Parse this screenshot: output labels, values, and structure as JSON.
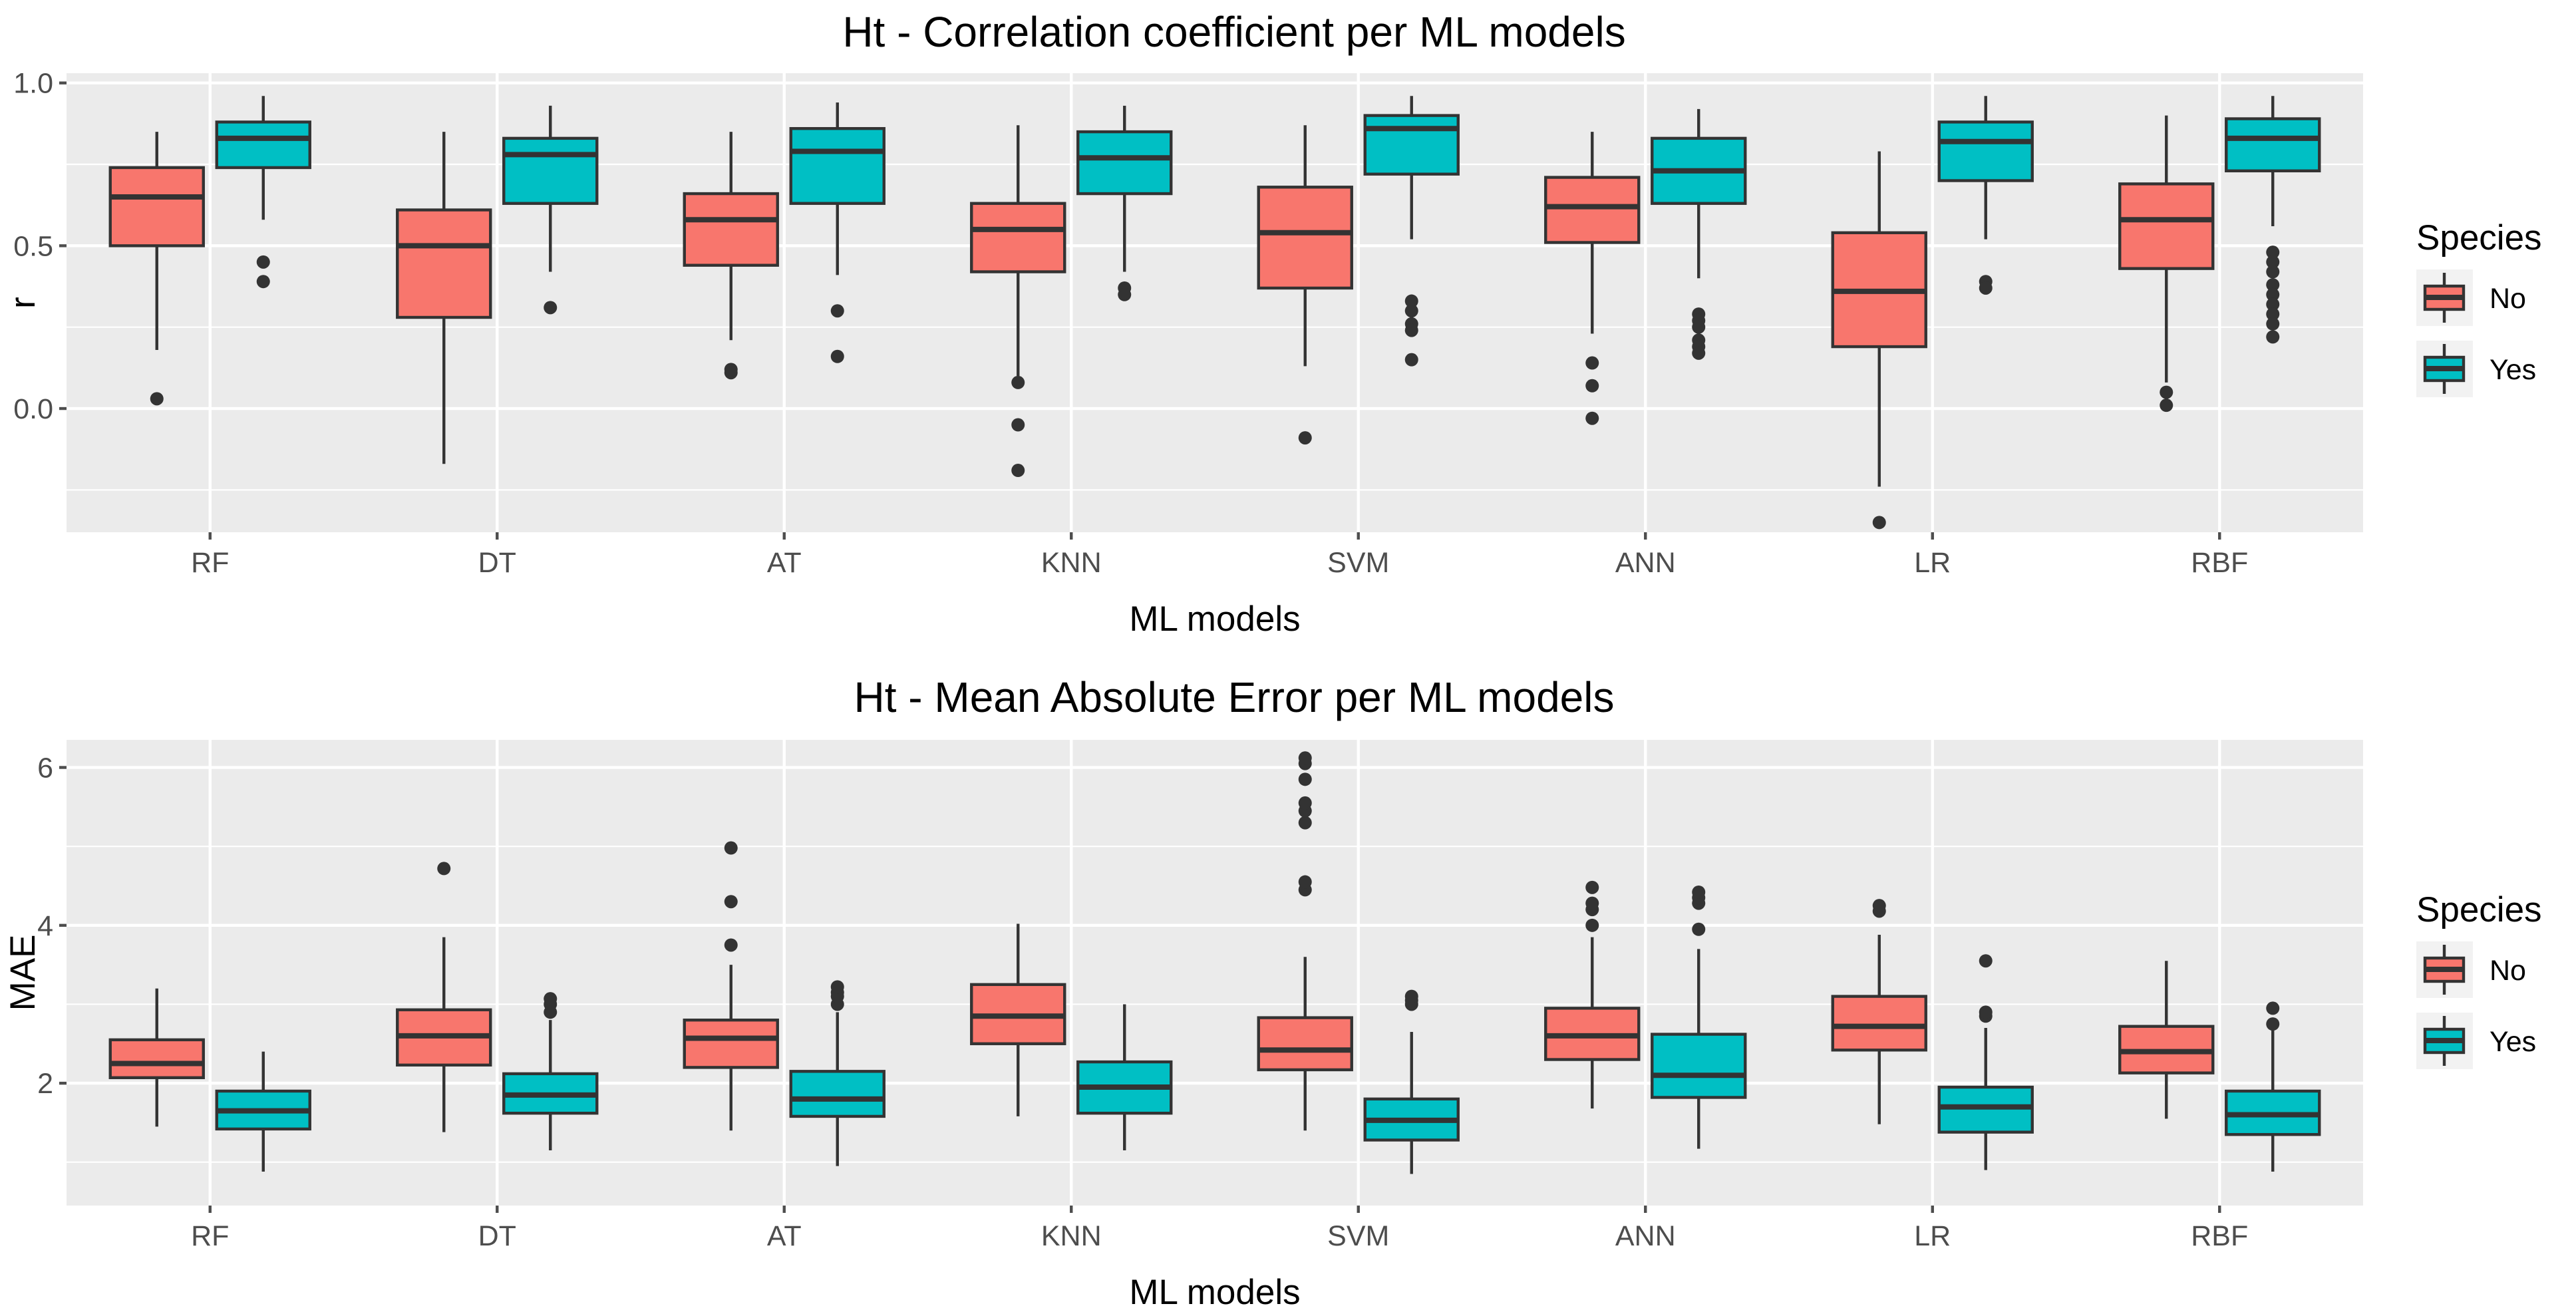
{
  "chart_data": [
    {
      "type": "boxplot",
      "title": "Ht - Correlation coefficient per ML models",
      "xlabel": "ML models",
      "ylabel": "r",
      "ylim": [
        -0.38,
        1.03
      ],
      "yticks": [
        0.0,
        0.5,
        1.0
      ],
      "ytick_labels": [
        "0.0",
        "0.5",
        "1.0"
      ],
      "grid": true,
      "categories": [
        "RF",
        "DT",
        "AT",
        "KNN",
        "SVM",
        "ANN",
        "LR",
        "RBF"
      ],
      "legend": {
        "title": "Species",
        "position": "right",
        "entries": [
          "No",
          "Yes"
        ]
      },
      "series": [
        {
          "name": "No",
          "color": "#F8766D",
          "boxes": [
            {
              "lower": 0.18,
              "q1": 0.5,
              "median": 0.65,
              "q3": 0.74,
              "upper": 0.85,
              "outliers": [
                0.03
              ]
            },
            {
              "lower": -0.17,
              "q1": 0.28,
              "median": 0.5,
              "q3": 0.61,
              "upper": 0.85,
              "outliers": []
            },
            {
              "lower": 0.21,
              "q1": 0.44,
              "median": 0.58,
              "q3": 0.66,
              "upper": 0.85,
              "outliers": [
                0.11,
                0.12
              ]
            },
            {
              "lower": 0.1,
              "q1": 0.42,
              "median": 0.55,
              "q3": 0.63,
              "upper": 0.87,
              "outliers": [
                0.08,
                -0.05,
                -0.19
              ]
            },
            {
              "lower": 0.13,
              "q1": 0.37,
              "median": 0.54,
              "q3": 0.68,
              "upper": 0.87,
              "outliers": [
                -0.09
              ]
            },
            {
              "lower": 0.23,
              "q1": 0.51,
              "median": 0.62,
              "q3": 0.71,
              "upper": 0.85,
              "outliers": [
                0.14,
                0.07,
                -0.03
              ]
            },
            {
              "lower": -0.24,
              "q1": 0.19,
              "median": 0.36,
              "q3": 0.54,
              "upper": 0.79,
              "outliers": [
                -0.35
              ]
            },
            {
              "lower": 0.08,
              "q1": 0.43,
              "median": 0.58,
              "q3": 0.69,
              "upper": 0.9,
              "outliers": [
                0.05,
                0.01
              ]
            }
          ]
        },
        {
          "name": "Yes",
          "color": "#00BFC4",
          "boxes": [
            {
              "lower": 0.58,
              "q1": 0.74,
              "median": 0.83,
              "q3": 0.88,
              "upper": 0.96,
              "outliers": [
                0.45,
                0.39
              ]
            },
            {
              "lower": 0.42,
              "q1": 0.63,
              "median": 0.78,
              "q3": 0.83,
              "upper": 0.93,
              "outliers": [
                0.31
              ]
            },
            {
              "lower": 0.41,
              "q1": 0.63,
              "median": 0.79,
              "q3": 0.86,
              "upper": 0.94,
              "outliers": [
                0.3,
                0.16
              ]
            },
            {
              "lower": 0.42,
              "q1": 0.66,
              "median": 0.77,
              "q3": 0.85,
              "upper": 0.93,
              "outliers": [
                0.37,
                0.35
              ]
            },
            {
              "lower": 0.52,
              "q1": 0.72,
              "median": 0.86,
              "q3": 0.9,
              "upper": 0.96,
              "outliers": [
                0.33,
                0.3,
                0.26,
                0.24,
                0.15
              ]
            },
            {
              "lower": 0.4,
              "q1": 0.63,
              "median": 0.73,
              "q3": 0.83,
              "upper": 0.92,
              "outliers": [
                0.29,
                0.27,
                0.25,
                0.21,
                0.19,
                0.17
              ]
            },
            {
              "lower": 0.52,
              "q1": 0.7,
              "median": 0.82,
              "q3": 0.88,
              "upper": 0.96,
              "outliers": [
                0.39,
                0.37
              ]
            },
            {
              "lower": 0.56,
              "q1": 0.73,
              "median": 0.83,
              "q3": 0.89,
              "upper": 0.96,
              "outliers": [
                0.48,
                0.45,
                0.42,
                0.38,
                0.35,
                0.32,
                0.29,
                0.26,
                0.22
              ]
            }
          ]
        }
      ]
    },
    {
      "type": "boxplot",
      "title": "Ht - Mean Absolute Error per ML models",
      "xlabel": "ML models",
      "ylabel": "MAE",
      "ylim": [
        0.45,
        6.35
      ],
      "yticks": [
        2,
        4,
        6
      ],
      "ytick_labels": [
        "2",
        "4",
        "6"
      ],
      "grid": true,
      "categories": [
        "RF",
        "DT",
        "AT",
        "KNN",
        "SVM",
        "ANN",
        "LR",
        "RBF"
      ],
      "legend": {
        "title": "Species",
        "position": "right",
        "entries": [
          "No",
          "Yes"
        ]
      },
      "series": [
        {
          "name": "No",
          "color": "#F8766D",
          "boxes": [
            {
              "lower": 1.45,
              "q1": 2.07,
              "median": 2.25,
              "q3": 2.55,
              "upper": 3.2,
              "outliers": []
            },
            {
              "lower": 1.38,
              "q1": 2.23,
              "median": 2.6,
              "q3": 2.93,
              "upper": 3.85,
              "outliers": [
                4.72
              ]
            },
            {
              "lower": 1.4,
              "q1": 2.2,
              "median": 2.57,
              "q3": 2.8,
              "upper": 3.5,
              "outliers": [
                3.75,
                4.3,
                4.98
              ]
            },
            {
              "lower": 1.58,
              "q1": 2.5,
              "median": 2.85,
              "q3": 3.25,
              "upper": 4.02,
              "outliers": []
            },
            {
              "lower": 1.4,
              "q1": 2.17,
              "median": 2.42,
              "q3": 2.83,
              "upper": 3.6,
              "outliers": [
                4.45,
                4.55,
                5.3,
                5.45,
                5.55,
                5.85,
                6.05,
                6.12
              ]
            },
            {
              "lower": 1.68,
              "q1": 2.3,
              "median": 2.6,
              "q3": 2.95,
              "upper": 3.85,
              "outliers": [
                4.0,
                4.2,
                4.28,
                4.48
              ]
            },
            {
              "lower": 1.48,
              "q1": 2.42,
              "median": 2.72,
              "q3": 3.1,
              "upper": 3.88,
              "outliers": [
                4.18,
                4.25
              ]
            },
            {
              "lower": 1.55,
              "q1": 2.13,
              "median": 2.4,
              "q3": 2.72,
              "upper": 3.55,
              "outliers": []
            }
          ]
        },
        {
          "name": "Yes",
          "color": "#00BFC4",
          "boxes": [
            {
              "lower": 0.88,
              "q1": 1.42,
              "median": 1.65,
              "q3": 1.9,
              "upper": 2.4,
              "outliers": []
            },
            {
              "lower": 1.15,
              "q1": 1.62,
              "median": 1.85,
              "q3": 2.12,
              "upper": 2.8,
              "outliers": [
                2.9,
                3.0,
                3.07
              ]
            },
            {
              "lower": 0.95,
              "q1": 1.58,
              "median": 1.8,
              "q3": 2.15,
              "upper": 2.9,
              "outliers": [
                3.0,
                3.1,
                3.15,
                3.22
              ]
            },
            {
              "lower": 1.15,
              "q1": 1.62,
              "median": 1.95,
              "q3": 2.27,
              "upper": 3.0,
              "outliers": []
            },
            {
              "lower": 0.85,
              "q1": 1.28,
              "median": 1.53,
              "q3": 1.8,
              "upper": 2.65,
              "outliers": [
                3.0,
                3.05,
                3.1
              ]
            },
            {
              "lower": 1.17,
              "q1": 1.82,
              "median": 2.1,
              "q3": 2.62,
              "upper": 3.7,
              "outliers": [
                3.95,
                4.28,
                4.35,
                4.42
              ]
            },
            {
              "lower": 0.9,
              "q1": 1.38,
              "median": 1.7,
              "q3": 1.95,
              "upper": 2.7,
              "outliers": [
                2.85,
                2.9,
                3.55
              ]
            },
            {
              "lower": 0.88,
              "q1": 1.35,
              "median": 1.6,
              "q3": 1.9,
              "upper": 2.7,
              "outliers": [
                2.75,
                2.95
              ]
            }
          ]
        }
      ]
    }
  ]
}
